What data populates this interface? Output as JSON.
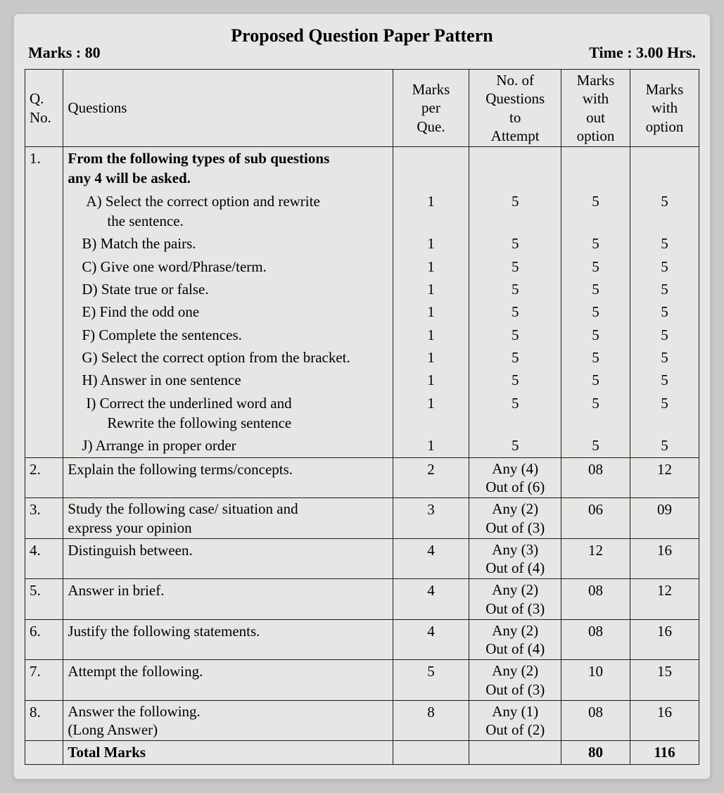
{
  "header": {
    "title": "Proposed Question Paper Pattern",
    "marks_label": "Marks : 80",
    "time_label": "Time : 3.00 Hrs."
  },
  "columns": {
    "qno_top": "Q.",
    "qno_bottom": "No.",
    "questions": "Questions",
    "mpq1": "Marks",
    "mpq2": "per",
    "mpq3": "Que.",
    "att1": "No. of",
    "att2": "Questions",
    "att3": "to",
    "att4": "Attempt",
    "wo1": "Marks",
    "wo2": "with",
    "wo3": "out",
    "wo4": "option",
    "with1": "Marks",
    "with2": "with",
    "with3": "option"
  },
  "q1": {
    "no": "1.",
    "heading1": "From the following types of sub questions",
    "heading2": "any 4  will be asked.",
    "items": {
      "a1": "A) Select the correct option and rewrite",
      "a2": "the sentence.",
      "b": "B) Match the pairs.",
      "c": "C) Give one word/Phrase/term.",
      "d": "D) State true or false.",
      "e": "E) Find the odd one",
      "f": "F) Complete the sentences.",
      "g": "G) Select the correct option from the bracket.",
      "h": "H) Answer in one sentence",
      "i1": "I) Correct the underlined word and",
      "i2": "Rewrite the following sentence",
      "j": "J) Arrange in proper order"
    },
    "vals": {
      "mpq": "1",
      "att": "5",
      "wo": "5",
      "with": "5"
    }
  },
  "rows": {
    "q2": {
      "no": "2.",
      "text": "Explain the following terms/concepts.",
      "mpq": "2",
      "att1": "Any (4)",
      "att2": "Out of (6)",
      "wo": "08",
      "with": "12"
    },
    "q3": {
      "no": "3.",
      "text1": "Study the following case/ situation and",
      "text2": "express your opinion",
      "mpq": "3",
      "att1": "Any (2)",
      "att2": "Out of (3)",
      "wo": "06",
      "with": "09"
    },
    "q4": {
      "no": "4.",
      "text": "Distinguish between.",
      "mpq": "4",
      "att1": "Any (3)",
      "att2": "Out of (4)",
      "wo": "12",
      "with": "16"
    },
    "q5": {
      "no": "5.",
      "text": "Answer in brief.",
      "mpq": "4",
      "att1": "Any (2)",
      "att2": "Out of (3)",
      "wo": "08",
      "with": "12"
    },
    "q6": {
      "no": "6.",
      "text": "Justify the following statements.",
      "mpq": "4",
      "att1": "Any (2)",
      "att2": "Out of (4)",
      "wo": "08",
      "with": "16"
    },
    "q7": {
      "no": "7.",
      "text": "Attempt the following.",
      "mpq": "5",
      "att1": "Any (2)",
      "att2": "Out of (3)",
      "wo": "10",
      "with": "15"
    },
    "q8": {
      "no": "8.",
      "text1": "Answer the following.",
      "text2": "(Long Answer)",
      "mpq": "8",
      "att1": "Any (1)",
      "att2": "Out of (2)",
      "wo": "08",
      "with": "16"
    }
  },
  "total": {
    "label": "Total Marks",
    "wo": "80",
    "with": "116"
  },
  "style": {
    "page_bg": "#e8e6e4",
    "border_color": "#1a1a1a",
    "font_family": "Times New Roman",
    "title_fontsize": 26,
    "cell_fontsize": 21,
    "meta_fontsize": 22
  }
}
